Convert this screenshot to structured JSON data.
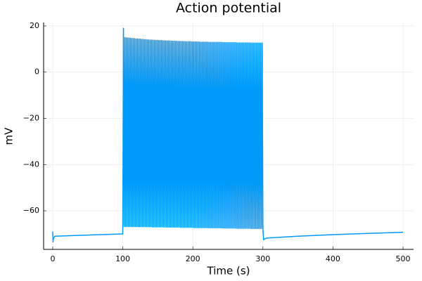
{
  "chart_data": {
    "type": "line",
    "title": "Action potential",
    "x_label": "Time (s)",
    "y_label": "mV",
    "grid": true,
    "xlim": [
      -13,
      515
    ],
    "ylim": [
      -76.7,
      21.5
    ],
    "xticks": [
      0,
      100,
      200,
      300,
      400,
      500
    ],
    "yticks": [
      {
        "value": -60,
        "label": "−60"
      },
      {
        "value": -40,
        "label": "−40"
      },
      {
        "value": -20,
        "label": "−20"
      },
      0,
      20
    ],
    "x": [
      0,
      0.5,
      1,
      3,
      50,
      99.9,
      100,
      101,
      102,
      103,
      104,
      105,
      106,
      107,
      108,
      109,
      110,
      111,
      112,
      113,
      114,
      115,
      116,
      117,
      118,
      119,
      120,
      121,
      122,
      123,
      124,
      125,
      126,
      127,
      128,
      129,
      130,
      131,
      132,
      133,
      134,
      135,
      136,
      137,
      138,
      139,
      140,
      141,
      142,
      143,
      144,
      145,
      146,
      147,
      148,
      149,
      150,
      151,
      152,
      153,
      154,
      155,
      156,
      157,
      158,
      159,
      160,
      161,
      162,
      163,
      164,
      165,
      166,
      167,
      168,
      169,
      170,
      171,
      172,
      173,
      174,
      175,
      176,
      177,
      178,
      179,
      180,
      181,
      182,
      183,
      184,
      185,
      186,
      187,
      188,
      189,
      190,
      191,
      192,
      193,
      194,
      195,
      196,
      197,
      198,
      199,
      200,
      201,
      202,
      203,
      204,
      205,
      206,
      207,
      208,
      209,
      210,
      211,
      212,
      213,
      214,
      215,
      216,
      217,
      218,
      219,
      220,
      221,
      222,
      223,
      224,
      225,
      226,
      227,
      228,
      229,
      230,
      231,
      232,
      233,
      234,
      235,
      236,
      237,
      238,
      239,
      240,
      241,
      242,
      243,
      244,
      245,
      246,
      247,
      248,
      249,
      250,
      251,
      252,
      253,
      254,
      255,
      256,
      257,
      258,
      259,
      260,
      261,
      262,
      263,
      264,
      265,
      266,
      267,
      268,
      269,
      270,
      271,
      272,
      273,
      274,
      275,
      276,
      277,
      278,
      279,
      280,
      281,
      282,
      283,
      284,
      285,
      286,
      287,
      288,
      289,
      290,
      291,
      292,
      293,
      294,
      295,
      296,
      297,
      298,
      299,
      300,
      301,
      305,
      350,
      400,
      450,
      500
    ],
    "series": [
      {
        "color": "#009af9",
        "values": [
          -69,
          -73.5,
          -72,
          -71,
          -70.5,
          -70,
          -70,
          19,
          -66.8,
          15.0,
          -66.8,
          14.9,
          -66.8,
          14.8,
          -66.8,
          14.8,
          -66.8,
          14.7,
          -66.8,
          14.6,
          -66.8,
          14.6,
          -66.8,
          14.5,
          -66.8,
          14.4,
          -66.8,
          14.4,
          -66.9,
          14.3,
          -66.9,
          14.3,
          -66.9,
          14.2,
          -66.9,
          14.2,
          -66.9,
          14.1,
          -66.9,
          14.1,
          -66.9,
          14.0,
          -66.9,
          14.0,
          -66.9,
          13.9,
          -66.9,
          13.9,
          -67.0,
          13.9,
          -67.0,
          13.8,
          -67.0,
          13.8,
          -67.0,
          13.8,
          -67.0,
          13.7,
          -67.0,
          13.7,
          -67.0,
          13.7,
          -67.0,
          13.6,
          -67.0,
          13.6,
          -67.0,
          13.6,
          -67.1,
          13.5,
          -67.1,
          13.5,
          -67.1,
          13.5,
          -67.1,
          13.5,
          -67.1,
          13.4,
          -67.1,
          13.4,
          -67.1,
          13.4,
          -67.1,
          13.4,
          -67.1,
          13.3,
          -67.1,
          13.3,
          -67.2,
          13.3,
          -67.2,
          13.3,
          -67.2,
          13.3,
          -67.2,
          13.2,
          -67.2,
          13.2,
          -67.2,
          13.2,
          -67.2,
          13.2,
          -67.2,
          13.2,
          -67.2,
          13.1,
          -67.2,
          13.1,
          -67.3,
          13.1,
          -67.3,
          13.1,
          -67.3,
          13.1,
          -67.3,
          13.1,
          -67.3,
          13.0,
          -67.3,
          13.0,
          -67.3,
          13.0,
          -67.3,
          13.0,
          -67.3,
          13.0,
          -67.3,
          13.0,
          -67.4,
          12.9,
          -67.4,
          12.9,
          -67.4,
          12.9,
          -67.4,
          12.9,
          -67.4,
          12.9,
          -67.4,
          12.9,
          -67.4,
          12.9,
          -67.4,
          12.9,
          -67.4,
          12.9,
          -67.4,
          12.9,
          -67.5,
          12.8,
          -67.5,
          12.8,
          -67.5,
          12.8,
          -67.5,
          12.8,
          -67.5,
          12.8,
          -67.5,
          12.8,
          -67.5,
          12.8,
          -67.5,
          12.8,
          -67.5,
          12.8,
          -67.5,
          12.8,
          -67.6,
          12.7,
          -67.6,
          12.7,
          -67.6,
          12.7,
          -67.6,
          12.7,
          -67.6,
          12.7,
          -67.6,
          12.7,
          -67.6,
          12.7,
          -67.6,
          12.7,
          -67.6,
          12.7,
          -67.6,
          12.7,
          -67.7,
          12.6,
          -67.7,
          12.6,
          -67.7,
          12.6,
          -67.7,
          12.6,
          -67.7,
          12.6,
          -67.7,
          12.6,
          -67.7,
          12.6,
          -67.7,
          12.6,
          -67.7,
          12.6,
          -67.7,
          -72.5,
          -71.8,
          -71,
          -70.3,
          -69.8,
          -69.3
        ]
      }
    ]
  }
}
